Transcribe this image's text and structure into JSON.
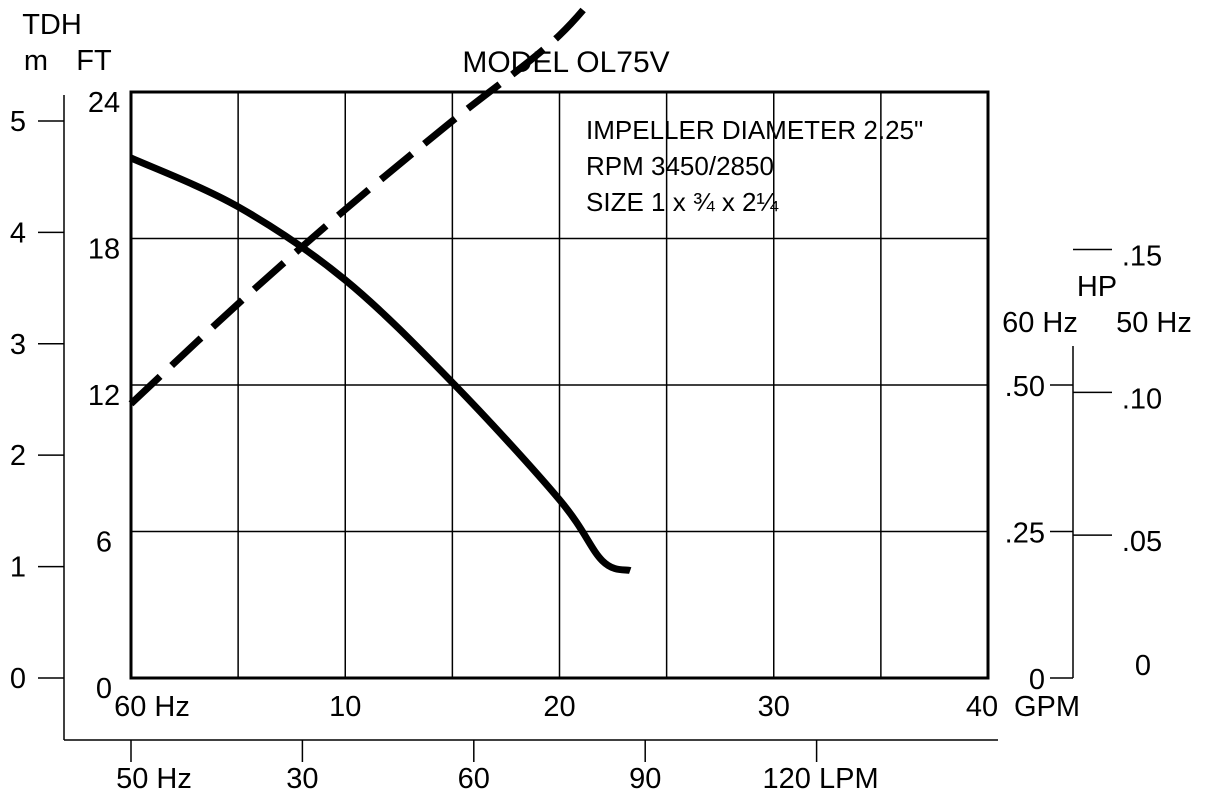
{
  "chart_data": {
    "type": "line",
    "title": "MODEL OL75V",
    "annotations": [
      "IMPELLER DIAMETER 2.25\"",
      "RPM 3450/2850",
      "SIZE 1 x ¾ x 2¼"
    ],
    "grid": true,
    "x_axis_primary": {
      "label_start": "60 Hz",
      "unit": "GPM",
      "range": [
        0,
        40
      ],
      "ticks": [
        "10",
        "20",
        "30",
        "40"
      ],
      "grid_step": 5
    },
    "x_axis_secondary": {
      "label_start": "50 Hz",
      "unit": "LPM",
      "range": [
        0,
        150
      ],
      "ticks": [
        "30",
        "60",
        "90",
        "120"
      ]
    },
    "y_axis_feet": {
      "header": "FT",
      "range": [
        0,
        24
      ],
      "ticks": [
        "0",
        "6",
        "12",
        "18",
        "24"
      ]
    },
    "y_axis_meters": {
      "header_top": "TDH",
      "header": "m",
      "range": [
        0,
        5.26
      ],
      "ticks": [
        "0",
        "1",
        "2",
        "3",
        "4",
        "5"
      ]
    },
    "y_axis_hp": {
      "header": "HP",
      "col_60": "60 Hz",
      "col_50": "50 Hz",
      "ticks_60": [
        ".50",
        ".25",
        "0"
      ],
      "ticks_50": [
        ".15",
        ".10",
        ".05",
        "0"
      ]
    },
    "series": [
      {
        "style": "solid",
        "axis": "TDH FT",
        "x": [
          0,
          5,
          10,
          15,
          20,
          22,
          23.3
        ],
        "y": [
          21.3,
          19.3,
          16.3,
          12.1,
          7.3,
          4.8,
          4.4
        ]
      },
      {
        "style": "dashed",
        "axis": "HP",
        "x": [
          0,
          5,
          10,
          15,
          20,
          23
        ],
        "y": [
          0.096,
          0.131,
          0.164,
          0.195,
          0.225,
          0.252
        ]
      }
    ]
  }
}
